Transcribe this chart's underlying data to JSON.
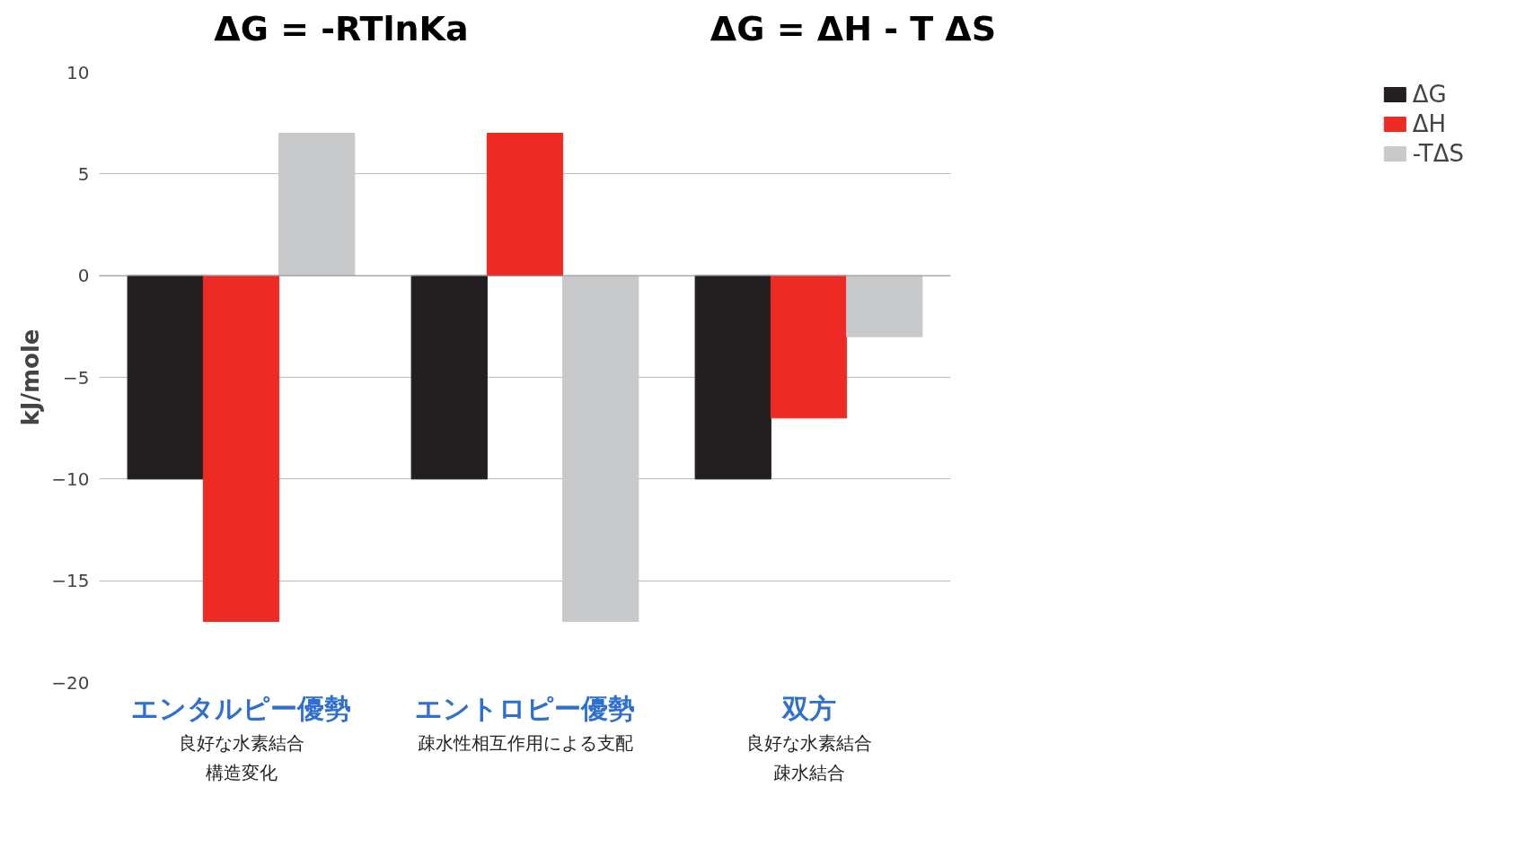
{
  "chart_data": {
    "type": "bar",
    "title": "ΔG = -RTlnKa",
    "subtitle": "ΔG = ΔH - T ΔS",
    "ylabel": "kJ/mole",
    "categories": [
      "エンタルピー優勢",
      "エントロピー優勢",
      "双方"
    ],
    "annotations": [
      "良好な水素結合",
      "構造変化",
      "疎水性相互作用による支配",
      "良好な水素結合",
      "疎水結合"
    ],
    "series": [
      {
        "name": "ΔG",
        "color": "#231f20",
        "values": [
          -10,
          -10,
          -10
        ]
      },
      {
        "name": "ΔH",
        "color": "#ee2a24",
        "values": [
          -17,
          7,
          -7
        ]
      },
      {
        "name": "-TΔS",
        "color": "#c8c9cb",
        "values": [
          7,
          -17,
          -3
        ]
      }
    ],
    "ylim": [
      -20,
      10
    ],
    "yticks": [
      -20,
      -15,
      -10,
      -5,
      0,
      5,
      10
    ],
    "grid": "y",
    "legend": "right"
  }
}
